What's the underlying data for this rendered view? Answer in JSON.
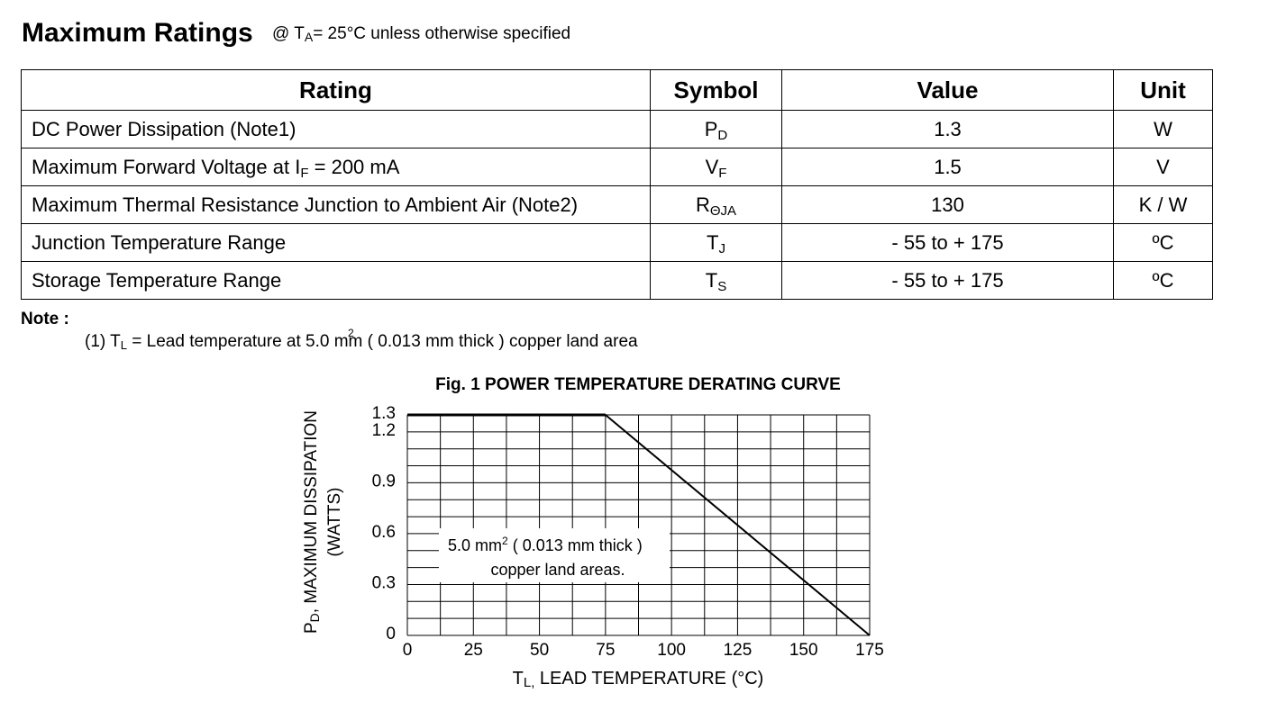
{
  "header": {
    "title": "Maximum Ratings",
    "condition_prefix": "@ T",
    "condition_sub": "A",
    "condition_suffix": "= 25°C unless otherwise specified"
  },
  "table": {
    "headers": [
      "Rating",
      "Symbol",
      "Value",
      "Unit"
    ],
    "rows": [
      {
        "rating": "DC Power Dissipation  (Note1)",
        "sym": "P",
        "sym_sub": "D",
        "value": "1.3",
        "unit": "W"
      },
      {
        "rating": "Maximum Forward Voltage at  I",
        "rating_sub": "F",
        "rating_tail": " = 200 mA",
        "sym": "V",
        "sym_sub": "F",
        "value": "1.5",
        "unit": "V"
      },
      {
        "rating": "Maximum Thermal Resistance Junction to Ambient Air (Note2)",
        "sym": "R",
        "sym_sub": "ΘJA",
        "value": "130",
        "unit": "K / W"
      },
      {
        "rating": "Junction Temperature Range",
        "sym": "T",
        "sym_sub": "J",
        "value": "- 55 to + 175",
        "unit": "ºC"
      },
      {
        "rating": "Storage Temperature Range",
        "sym": "T",
        "sym_sub": "S",
        "value": "- 55 to + 175",
        "unit": "ºC"
      }
    ]
  },
  "note": {
    "label": "Note :",
    "line_prefix": "(1) T",
    "line_sub": "L",
    "line_suffix": " = Lead temperature at 5.0 mm  ( 0.013 mm thick ) copper land area",
    "superscript": "2"
  },
  "chart_data": {
    "type": "line",
    "title": "Fig. 1  POWER TEMPERATURE DERATING CURVE",
    "xlabel": "TL,  LEAD TEMPERATURE (°C)",
    "xlabel_main": "T",
    "xlabel_sub": "L,",
    "xlabel_rest": "  LEAD TEMPERATURE (°C)",
    "ylabel_line1": "PD, MAXIMUM DISSIPATION",
    "ylabel_line1_main": "P",
    "ylabel_line1_sub": "D",
    "ylabel_line1_rest": ", MAXIMUM DISSIPATION",
    "ylabel_line2": "(WATTS)",
    "xlim": [
      0,
      175
    ],
    "ylim": [
      0,
      1.3
    ],
    "x_ticks": [
      "0",
      "25",
      "50",
      "75",
      "100",
      "125",
      "150",
      "175"
    ],
    "y_ticks": [
      "0",
      "0.3",
      "0.6",
      "0.9",
      "1.2",
      "1.3"
    ],
    "series": [
      {
        "values": [
          [
            0,
            1.3
          ],
          [
            75,
            1.3
          ],
          [
            175,
            0
          ]
        ]
      }
    ],
    "annotation_line1": "5.0 mm",
    "annotation_sup": "2",
    "annotation_line1_rest": " ( 0.013 mm thick )",
    "annotation_line2": "copper land areas.",
    "grid": true
  }
}
